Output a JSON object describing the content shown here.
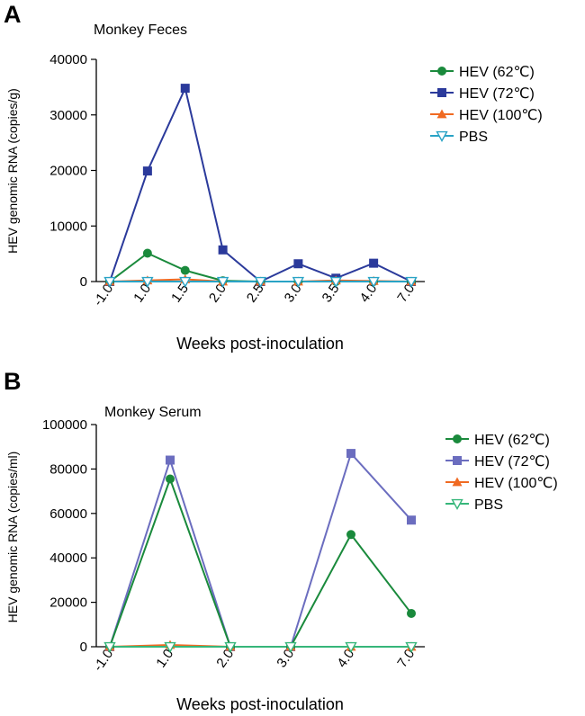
{
  "chart_data": [
    {
      "panel": "A",
      "type": "line",
      "title": "Monkey Feces",
      "xlabel": "Weeks post-inoculation",
      "ylabel": "HEV genomic RNA (copies/g)",
      "categories": [
        "-1.0",
        "1.0",
        "1.5",
        "2.0",
        "2.5",
        "3.0",
        "3.5",
        "4.0",
        "7.0"
      ],
      "ylim": [
        0,
        40000
      ],
      "yticks": [
        "0",
        "10000",
        "20000",
        "30000",
        "40000"
      ],
      "legend_position": "right",
      "series": [
        {
          "name": "HEV (62℃)",
          "color": "#1a8a3c",
          "marker": "circle",
          "values": [
            0,
            5100,
            2000,
            150,
            0,
            0,
            0,
            0,
            0
          ]
        },
        {
          "name": "HEV (72℃)",
          "color": "#2b3a9b",
          "marker": "square",
          "values": [
            0,
            19900,
            34800,
            5700,
            0,
            3200,
            600,
            3300,
            0
          ]
        },
        {
          "name": "HEV (100℃)",
          "color": "#f06a22",
          "marker": "triangle",
          "values": [
            0,
            200,
            400,
            0,
            0,
            0,
            200,
            100,
            0
          ]
        },
        {
          "name": "PBS",
          "color": "#29a3c5",
          "marker": "triangle-down",
          "values": [
            0,
            0,
            0,
            0,
            0,
            0,
            0,
            0,
            0
          ]
        }
      ]
    },
    {
      "panel": "B",
      "type": "line",
      "title": "Monkey Serum",
      "xlabel": "Weeks post-inoculation",
      "ylabel": "HEV genomic RNA (copies/ml)",
      "categories": [
        "-1.0",
        "1.0",
        "2.0",
        "3.0",
        "4.0",
        "7.0"
      ],
      "ylim": [
        0,
        100000
      ],
      "yticks": [
        "0",
        "20000",
        "40000",
        "60000",
        "80000",
        "100000"
      ],
      "legend_position": "right",
      "series": [
        {
          "name": "HEV (62℃)",
          "color": "#1a8a3c",
          "marker": "circle",
          "values": [
            0,
            75500,
            0,
            0,
            50500,
            15000
          ]
        },
        {
          "name": "HEV (72℃)",
          "color": "#6b6dbf",
          "marker": "square",
          "values": [
            0,
            84000,
            0,
            0,
            87000,
            57000
          ]
        },
        {
          "name": "HEV (100℃)",
          "color": "#f06a22",
          "marker": "triangle",
          "values": [
            0,
            800,
            0,
            0,
            0,
            0
          ]
        },
        {
          "name": "PBS",
          "color": "#36b67a",
          "marker": "triangle-down",
          "values": [
            0,
            0,
            0,
            0,
            0,
            0
          ]
        }
      ]
    }
  ]
}
